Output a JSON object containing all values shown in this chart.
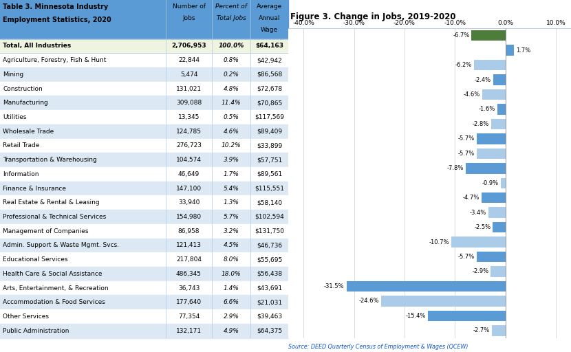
{
  "table_title_line1": "Table 3. Minnesota Industry",
  "table_title_line2": "Employment Statistics, 2020",
  "chart_title": "Figure 3. Change in Jobs, 2019-2020",
  "source_text": "Source: DEED Quarterly Census of Employment & Wages (QCEW)",
  "col_headers_line1": [
    "Number of",
    "Percent of",
    "Average"
  ],
  "col_headers_line2": [
    "Jobs",
    "Total Jobs",
    "Annual"
  ],
  "col_headers_line3": [
    "",
    "",
    "Wage"
  ],
  "industries": [
    "Total, All Industries",
    "Agriculture, Forestry, Fish & Hunt",
    "Mining",
    "Construction",
    "Manufacturing",
    "Utilities",
    "Wholesale Trade",
    "Retail Trade",
    "Transportation & Warehousing",
    "Information",
    "Finance & Insurance",
    "Real Estate & Rental & Leasing",
    "Professional & Technical Services",
    "Management of Companies",
    "Admin. Support & Waste Mgmt. Svcs.",
    "Educational Services",
    "Health Care & Social Assistance",
    "Arts, Entertainment, & Recreation",
    "Accommodation & Food Services",
    "Other Services",
    "Public Administration"
  ],
  "num_jobs": [
    "2,706,953",
    "22,844",
    "5,474",
    "131,021",
    "309,088",
    "13,345",
    "124,785",
    "276,723",
    "104,574",
    "46,649",
    "147,100",
    "33,940",
    "154,980",
    "86,958",
    "121,413",
    "217,804",
    "486,345",
    "36,743",
    "177,640",
    "77,354",
    "132,171"
  ],
  "pct_jobs": [
    "100.0%",
    "0.8%",
    "0.2%",
    "4.8%",
    "11.4%",
    "0.5%",
    "4.6%",
    "10.2%",
    "3.9%",
    "1.7%",
    "5.4%",
    "1.3%",
    "5.7%",
    "3.2%",
    "4.5%",
    "8.0%",
    "18.0%",
    "1.4%",
    "6.6%",
    "2.9%",
    "4.9%"
  ],
  "avg_wage": [
    "$64,163",
    "$42,942",
    "$86,568",
    "$72,678",
    "$70,865",
    "$117,569",
    "$89,409",
    "$33,899",
    "$57,751",
    "$89,561",
    "$115,551",
    "$58,140",
    "$102,594",
    "$131,750",
    "$46,736",
    "$55,695",
    "$56,438",
    "$43,691",
    "$21,031",
    "$39,463",
    "$64,375"
  ],
  "changes": [
    -6.7,
    1.7,
    -6.2,
    -2.4,
    -4.6,
    -1.6,
    -2.8,
    -5.7,
    -5.7,
    -7.8,
    -0.9,
    -4.7,
    -3.4,
    -2.5,
    -10.7,
    -5.7,
    -2.9,
    -31.5,
    -24.6,
    -15.4,
    -2.7
  ],
  "bar_colors": [
    "#4e7d3b",
    "#5b9bd5",
    "#aacce8",
    "#5b9bd5",
    "#aacce8",
    "#5b9bd5",
    "#aacce8",
    "#5b9bd5",
    "#aacce8",
    "#5b9bd5",
    "#aacce8",
    "#5b9bd5",
    "#aacce8",
    "#5b9bd5",
    "#aacce8",
    "#5b9bd5",
    "#aacce8",
    "#5b9bd5",
    "#aacce8",
    "#5b9bd5",
    "#aacce8"
  ],
  "header_bg": "#5b9bd5",
  "total_row_bg": "#eef4e0",
  "alt_row_bg": "#dce9f5",
  "white_row_bg": "#ffffff",
  "axis_xlim": [
    -43,
    13
  ],
  "xticks": [
    -40.0,
    -30.0,
    -20.0,
    -10.0,
    0.0,
    10.0
  ],
  "xtick_labels": [
    "-40.0%",
    "-30.0%",
    "-20.0%",
    "-10.0%",
    "0.0%",
    "10.0%"
  ]
}
